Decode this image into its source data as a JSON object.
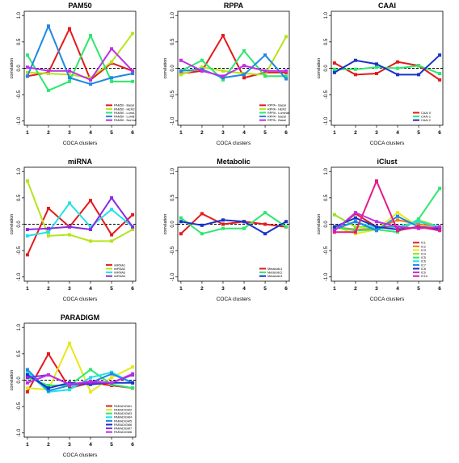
{
  "chart_data": [
    {
      "type": "line",
      "title": "PAM50",
      "xlabel": "COCA clusters",
      "ylabel": "correlation",
      "x": [
        1,
        2,
        3,
        4,
        5,
        6
      ],
      "ylim": [
        -1.0,
        1.0
      ],
      "yticks": [
        "-1.0",
        "-0.5",
        "0.0",
        "0.5",
        "1.0"
      ],
      "legend_position": "bottom-right",
      "series": [
        {
          "name": "PAM50 - Basal",
          "color": "#e41a1c",
          "values": [
            -0.15,
            -0.08,
            0.75,
            -0.22,
            0.1,
            -0.05
          ]
        },
        {
          "name": "PAM50 - HER2",
          "color": "#b7e41a",
          "values": [
            -0.08,
            -0.1,
            -0.12,
            -0.18,
            0.12,
            0.66
          ]
        },
        {
          "name": "PAM50 - LumA",
          "color": "#2de86c",
          "values": [
            0.25,
            -0.42,
            -0.25,
            0.62,
            -0.25,
            -0.25
          ]
        },
        {
          "name": "PAM50 - LumB",
          "color": "#1e88e5",
          "values": [
            -0.15,
            0.8,
            -0.18,
            -0.3,
            -0.18,
            -0.1
          ]
        },
        {
          "name": "PAM50 - Normal",
          "color": "#c02ee6",
          "values": [
            0.02,
            -0.05,
            -0.05,
            -0.22,
            0.37,
            -0.05
          ]
        }
      ]
    },
    {
      "type": "line",
      "title": "RPPA",
      "xlabel": "COCA clusters",
      "ylabel": "correlation",
      "x": [
        1,
        2,
        3,
        4,
        5,
        6
      ],
      "ylim": [
        -1.0,
        1.0
      ],
      "yticks": [
        "-1.0",
        "-0.5",
        "0.0",
        "0.5",
        "1.0"
      ],
      "legend_position": "bottom-right",
      "series": [
        {
          "name": "RPPA - Basal",
          "color": "#e41a1c",
          "values": [
            -0.1,
            -0.05,
            0.62,
            -0.18,
            -0.08,
            -0.08
          ]
        },
        {
          "name": "RPPA - HER2",
          "color": "#b7e41a",
          "values": [
            -0.12,
            0.02,
            -0.05,
            -0.1,
            -0.12,
            0.6
          ]
        },
        {
          "name": "RPPA - Luminal",
          "color": "#2de86c",
          "values": [
            -0.05,
            0.15,
            -0.22,
            0.33,
            -0.15,
            -0.15
          ]
        },
        {
          "name": "RPPA - Basal",
          "color": "#1e88e5",
          "values": [
            -0.05,
            -0.02,
            -0.18,
            -0.12,
            0.25,
            -0.2
          ]
        },
        {
          "name": "RPPA - Basal",
          "color": "#c02ee6",
          "values": [
            0.15,
            -0.05,
            -0.15,
            0.05,
            -0.05,
            -0.05
          ]
        }
      ]
    },
    {
      "type": "line",
      "title": "CAAI",
      "xlabel": "COCA clusters",
      "ylabel": "correlation",
      "x": [
        1,
        2,
        3,
        4,
        5,
        6
      ],
      "ylim": [
        -1.0,
        1.0
      ],
      "yticks": [
        "-1.0",
        "-0.5",
        "0.0",
        "0.5",
        "1.0"
      ],
      "legend_position": "bottom-right",
      "series": [
        {
          "name": "CAAI 0",
          "color": "#e41a1c",
          "values": [
            0.1,
            -0.12,
            -0.1,
            0.12,
            0.05,
            -0.22
          ]
        },
        {
          "name": "CAAI 1",
          "color": "#2de86c",
          "values": [
            -0.02,
            -0.02,
            0.02,
            0.0,
            0.05,
            -0.1
          ]
        },
        {
          "name": "CAAI 2",
          "color": "#1a33c8",
          "values": [
            -0.08,
            0.15,
            0.08,
            -0.12,
            -0.12,
            0.25
          ]
        }
      ]
    },
    {
      "type": "line",
      "title": "miRNA",
      "xlabel": "COCA clusters",
      "ylabel": "correlation",
      "x": [
        1,
        2,
        3,
        4,
        5,
        6
      ],
      "ylim": [
        -1.0,
        1.0
      ],
      "yticks": [
        "-1.0",
        "-0.5",
        "0.0",
        "0.5",
        "1.0"
      ],
      "legend_position": "bottom-right",
      "series": [
        {
          "name": "miRNA1",
          "color": "#e41a1c",
          "values": [
            -0.58,
            0.3,
            -0.05,
            0.45,
            -0.2,
            0.18
          ]
        },
        {
          "name": "miRNA2",
          "color": "#b7e41a",
          "values": [
            0.82,
            -0.22,
            -0.2,
            -0.32,
            -0.32,
            -0.1
          ]
        },
        {
          "name": "miRNA3",
          "color": "#22e0e8",
          "values": [
            -0.22,
            -0.15,
            0.4,
            -0.05,
            0.28,
            -0.05
          ]
        },
        {
          "name": "miRNA4",
          "color": "#8a2be2",
          "values": [
            -0.1,
            -0.08,
            -0.05,
            -0.1,
            0.5,
            -0.05
          ]
        }
      ]
    },
    {
      "type": "line",
      "title": "Metabolic",
      "xlabel": "COCA clusters",
      "ylabel": "correlation",
      "x": [
        1,
        2,
        3,
        4,
        5,
        6
      ],
      "ylim": [
        -1.0,
        1.0
      ],
      "yticks": [
        "-1.0",
        "-0.5",
        "0.0",
        "0.5",
        "1.0"
      ],
      "legend_position": "bottom-right",
      "series": [
        {
          "name": "Metabolic1",
          "color": "#e41a1c",
          "values": [
            -0.18,
            0.2,
            0.0,
            0.05,
            0.0,
            -0.05
          ]
        },
        {
          "name": "Metabolic2",
          "color": "#2de86c",
          "values": [
            0.12,
            -0.18,
            -0.08,
            -0.08,
            0.22,
            -0.05
          ]
        },
        {
          "name": "Metabolic3",
          "color": "#1a33c8",
          "values": [
            0.05,
            -0.02,
            0.08,
            0.05,
            -0.18,
            0.05
          ]
        }
      ]
    },
    {
      "type": "line",
      "title": "iClust",
      "xlabel": "COCA clusters",
      "ylabel": "correlation",
      "x": [
        1,
        2,
        3,
        4,
        5,
        6
      ],
      "ylim": [
        -1.0,
        1.0
      ],
      "yticks": [
        "-1.0",
        "-0.5",
        "0.0",
        "0.5",
        "1.0"
      ],
      "legend_position": "bottom-right",
      "series": [
        {
          "name": "IC1",
          "color": "#e41a1c",
          "values": [
            -0.12,
            0.2,
            -0.05,
            -0.05,
            0.05,
            -0.05
          ]
        },
        {
          "name": "IC2",
          "color": "#e8801a",
          "values": [
            -0.05,
            -0.1,
            -0.08,
            0.08,
            0.0,
            -0.05
          ]
        },
        {
          "name": "IC3",
          "color": "#e8e81a",
          "values": [
            -0.05,
            -0.18,
            -0.1,
            0.22,
            -0.05,
            -0.05
          ]
        },
        {
          "name": "IC4",
          "color": "#8ee81a",
          "values": [
            0.18,
            -0.05,
            -0.05,
            -0.1,
            0.08,
            -0.05
          ]
        },
        {
          "name": "IC5",
          "color": "#2de86c",
          "values": [
            -0.05,
            -0.12,
            -0.1,
            -0.15,
            0.1,
            0.68
          ]
        },
        {
          "name": "IC6",
          "color": "#22e0e8",
          "values": [
            -0.08,
            0.05,
            -0.08,
            -0.05,
            0.05,
            -0.05
          ]
        },
        {
          "name": "IC7",
          "color": "#1e88e5",
          "values": [
            -0.1,
            0.05,
            -0.12,
            0.15,
            -0.05,
            -0.1
          ]
        },
        {
          "name": "IC8",
          "color": "#1a33c8",
          "values": [
            -0.05,
            0.12,
            -0.05,
            -0.1,
            -0.05,
            -0.08
          ]
        },
        {
          "name": "IC9",
          "color": "#c02ee6",
          "values": [
            -0.12,
            0.22,
            0.05,
            -0.05,
            -0.08,
            -0.05
          ]
        },
        {
          "name": "IC10",
          "color": "#e61a8a",
          "values": [
            -0.15,
            -0.15,
            0.82,
            -0.12,
            -0.05,
            -0.12
          ]
        }
      ]
    },
    {
      "type": "line",
      "title": "PARADIGM",
      "xlabel": "COCA clusters",
      "ylabel": "correlation",
      "x": [
        1,
        2,
        3,
        4,
        5,
        6
      ],
      "ylim": [
        -1.0,
        1.0
      ],
      "yticks": [
        "-1.0",
        "-0.5",
        "0.0",
        "0.5",
        "1.0"
      ],
      "legend_position": "bottom-right",
      "series": [
        {
          "name": "PARADIGM1",
          "color": "#e41a1c",
          "values": [
            -0.22,
            0.5,
            -0.15,
            -0.05,
            -0.1,
            -0.15
          ]
        },
        {
          "name": "PARADIGM2",
          "color": "#e8e81a",
          "values": [
            -0.15,
            -0.18,
            0.7,
            -0.22,
            0.05,
            0.25
          ]
        },
        {
          "name": "PARADIGM3",
          "color": "#2de86c",
          "values": [
            0.05,
            -0.1,
            -0.1,
            0.2,
            -0.08,
            -0.15
          ]
        },
        {
          "name": "PARADIGM4",
          "color": "#22e0e8",
          "values": [
            0.15,
            -0.22,
            -0.18,
            0.05,
            0.15,
            -0.05
          ]
        },
        {
          "name": "PARADIGM5",
          "color": "#1e88e5",
          "values": [
            0.2,
            -0.2,
            -0.1,
            -0.05,
            0.12,
            -0.05
          ]
        },
        {
          "name": "PARADIGM6",
          "color": "#1a33c8",
          "values": [
            0.1,
            -0.15,
            -0.05,
            -0.08,
            -0.05,
            -0.05
          ]
        },
        {
          "name": "PARADIGM7",
          "color": "#8a2be2",
          "values": [
            0.05,
            0.1,
            -0.08,
            -0.05,
            -0.05,
            0.1
          ]
        },
        {
          "name": "PARADIGM8",
          "color": "#c02ee6",
          "values": [
            -0.05,
            0.1,
            -0.08,
            -0.02,
            -0.05,
            0.12
          ]
        }
      ]
    }
  ]
}
